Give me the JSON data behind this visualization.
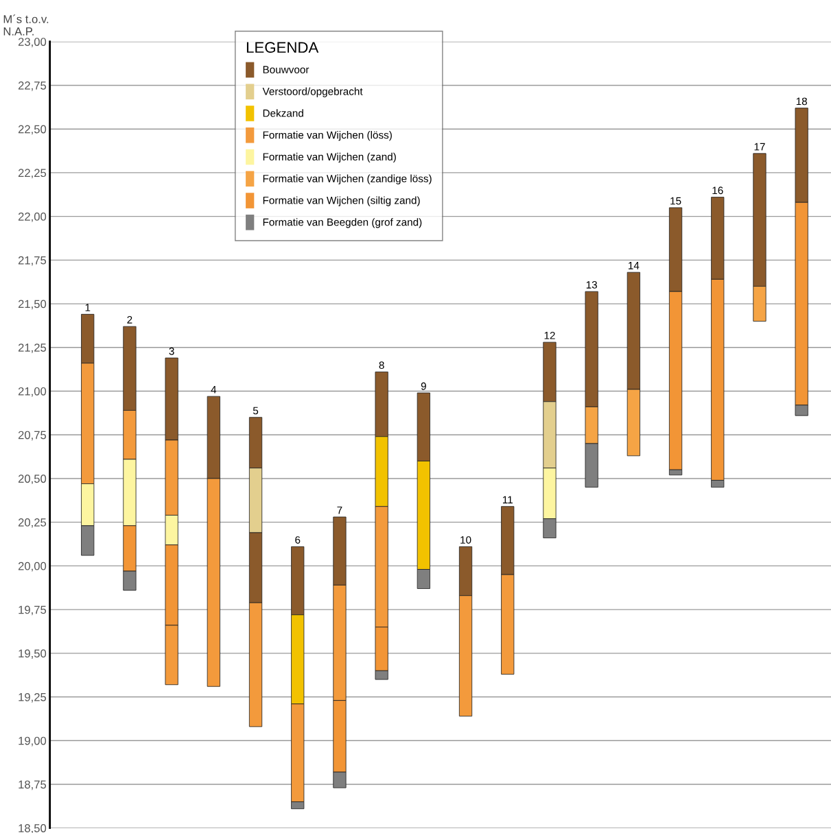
{
  "chart_data": {
    "type": "bar",
    "ylabel": "M´s t.o.v.\nN.A.P.",
    "legend_title": "LEGENDA",
    "legend": "top",
    "grid": "y",
    "tick_labels": "y",
    "categories": [
      "1",
      "2",
      "3",
      "4",
      "5",
      "6",
      "7",
      "8",
      "9",
      "10",
      "11",
      "12",
      "13",
      "14",
      "15",
      "16",
      "17",
      "18"
    ],
    "ylim": [
      18.5,
      23.0
    ],
    "yticks": [
      {
        "value": 18.5,
        "label": "18,50"
      },
      {
        "value": 18.75,
        "label": "18,75"
      },
      {
        "value": 19.0,
        "label": "19,00"
      },
      {
        "value": 19.25,
        "label": "19,25"
      },
      {
        "value": 19.5,
        "label": "19,50"
      },
      {
        "value": 19.75,
        "label": "19,75"
      },
      {
        "value": 20.0,
        "label": "20,00"
      },
      {
        "value": 20.25,
        "label": "20,25"
      },
      {
        "value": 20.5,
        "label": "20,50"
      },
      {
        "value": 20.75,
        "label": "20,75"
      },
      {
        "value": 21.0,
        "label": "21,00"
      },
      {
        "value": 21.25,
        "label": "21,25"
      },
      {
        "value": 21.5,
        "label": "21,50"
      },
      {
        "value": 21.75,
        "label": "21,75"
      },
      {
        "value": 22.0,
        "label": "22,00"
      },
      {
        "value": 22.25,
        "label": "22,25"
      },
      {
        "value": 22.5,
        "label": "22,50"
      },
      {
        "value": 22.75,
        "label": "22,75"
      },
      {
        "value": 23.0,
        "label": "23,00"
      }
    ],
    "series": [
      {
        "name": "Bouwvoor",
        "color": "#8b5a2b",
        "base": [
          21.16,
          20.89,
          20.72,
          20.5,
          20.56,
          19.72,
          19.89,
          20.74,
          20.6,
          19.83,
          19.95,
          20.94,
          20.91,
          21.01,
          21.57,
          21.64,
          21.6,
          22.08
        ],
        "values": [
          0.28,
          0.48,
          0.47,
          0.47,
          0.29,
          0.39,
          0.39,
          0.37,
          0.39,
          0.28,
          0.39,
          0.34,
          0.66,
          0.67,
          0.48,
          0.47,
          0.76,
          0.54
        ]
      },
      {
        "name": "Verstoord/opgebracht",
        "color": "#e3cf8e",
        "base": [
          null,
          null,
          null,
          null,
          20.19,
          null,
          null,
          null,
          null,
          null,
          null,
          20.56,
          null,
          null,
          null,
          null,
          null,
          null
        ],
        "values": [
          null,
          null,
          null,
          null,
          0.37,
          null,
          null,
          null,
          null,
          null,
          null,
          0.38,
          null,
          null,
          null,
          null,
          null,
          null
        ]
      },
      {
        "name": "Dekzand",
        "color": "#f2c200",
        "base": [
          null,
          null,
          null,
          null,
          null,
          19.21,
          null,
          20.34,
          19.98,
          null,
          null,
          null,
          null,
          null,
          null,
          null,
          null,
          null
        ],
        "values": [
          null,
          null,
          null,
          null,
          null,
          0.51,
          null,
          0.4,
          0.62,
          null,
          null,
          null,
          null,
          null,
          null,
          null,
          null,
          null
        ]
      },
      {
        "name": "Formatie van Wijchen (löss)",
        "color": "#f39a3c",
        "base": [
          20.47,
          20.61,
          20.29,
          19.31,
          19.08,
          18.65,
          19.23,
          19.65,
          null,
          19.14,
          19.38,
          null,
          null,
          null,
          null,
          null,
          null,
          null
        ],
        "values": [
          0.69,
          0.28,
          0.43,
          1.19,
          0.71,
          0.56,
          0.66,
          0.69,
          null,
          0.69,
          0.57,
          null,
          null,
          null,
          null,
          null,
          null,
          null
        ]
      },
      {
        "name": "Formatie van Wijchen (zand)",
        "color": "#fdf5a0",
        "base": [
          20.23,
          20.23,
          20.12,
          null,
          null,
          null,
          null,
          null,
          null,
          null,
          null,
          20.27,
          null,
          null,
          null,
          null,
          null,
          null
        ],
        "values": [
          0.24,
          0.38,
          0.17,
          null,
          null,
          null,
          null,
          null,
          null,
          null,
          null,
          0.29,
          null,
          null,
          null,
          null,
          null,
          null
        ]
      },
      {
        "name": "Formatie van Wijchen (zandige löss)",
        "color": "#f5a445",
        "base": [
          null,
          null,
          null,
          null,
          null,
          null,
          null,
          null,
          null,
          null,
          null,
          null,
          20.7,
          20.63,
          null,
          null,
          21.4,
          null
        ],
        "values": [
          null,
          null,
          null,
          null,
          null,
          null,
          null,
          null,
          null,
          null,
          null,
          null,
          0.21,
          0.38,
          null,
          null,
          0.2,
          null
        ]
      },
      {
        "name": "Formatie van Wijchen (siltig zand)",
        "color": "#f29536",
        "base": [
          null,
          19.97,
          19.66,
          null,
          null,
          null,
          18.82,
          19.4,
          null,
          null,
          null,
          null,
          null,
          null,
          20.55,
          20.49,
          null,
          20.92
        ],
        "values": [
          null,
          0.26,
          0.46,
          null,
          null,
          null,
          0.41,
          0.25,
          null,
          null,
          null,
          null,
          null,
          null,
          1.02,
          1.15,
          null,
          1.16
        ]
      },
      {
        "name": "Formatie van Beegden (grof zand)",
        "color": "#7f7f7f",
        "base": [
          20.06,
          19.86,
          null,
          null,
          null,
          18.61,
          18.73,
          19.35,
          19.87,
          null,
          null,
          20.16,
          20.45,
          null,
          20.52,
          20.45,
          null,
          20.86
        ],
        "values": [
          0.17,
          0.11,
          null,
          null,
          null,
          0.04,
          0.09,
          0.05,
          0.11,
          null,
          null,
          0.11,
          0.25,
          null,
          0.03,
          0.04,
          null,
          0.06
        ]
      },
      {
        "color": "#8b5a2b",
        "base": [
          null,
          null,
          null,
          null,
          19.79,
          null,
          null,
          null,
          null,
          null,
          null,
          null,
          null,
          null,
          null,
          null,
          null,
          null
        ],
        "values": [
          null,
          null,
          null,
          null,
          0.4,
          null,
          null,
          null,
          null,
          null,
          null,
          null,
          null,
          null,
          null,
          null,
          null,
          null
        ]
      },
      {
        "color": "#f39a3c",
        "base": [
          null,
          null,
          19.32,
          null,
          null,
          null,
          null,
          null,
          null,
          null,
          null,
          null,
          null,
          null,
          null,
          null,
          null,
          null
        ],
        "values": [
          null,
          null,
          0.34,
          null,
          null,
          null,
          null,
          null,
          null,
          null,
          null,
          null,
          null,
          null,
          null,
          null,
          null,
          null
        ]
      }
    ]
  }
}
